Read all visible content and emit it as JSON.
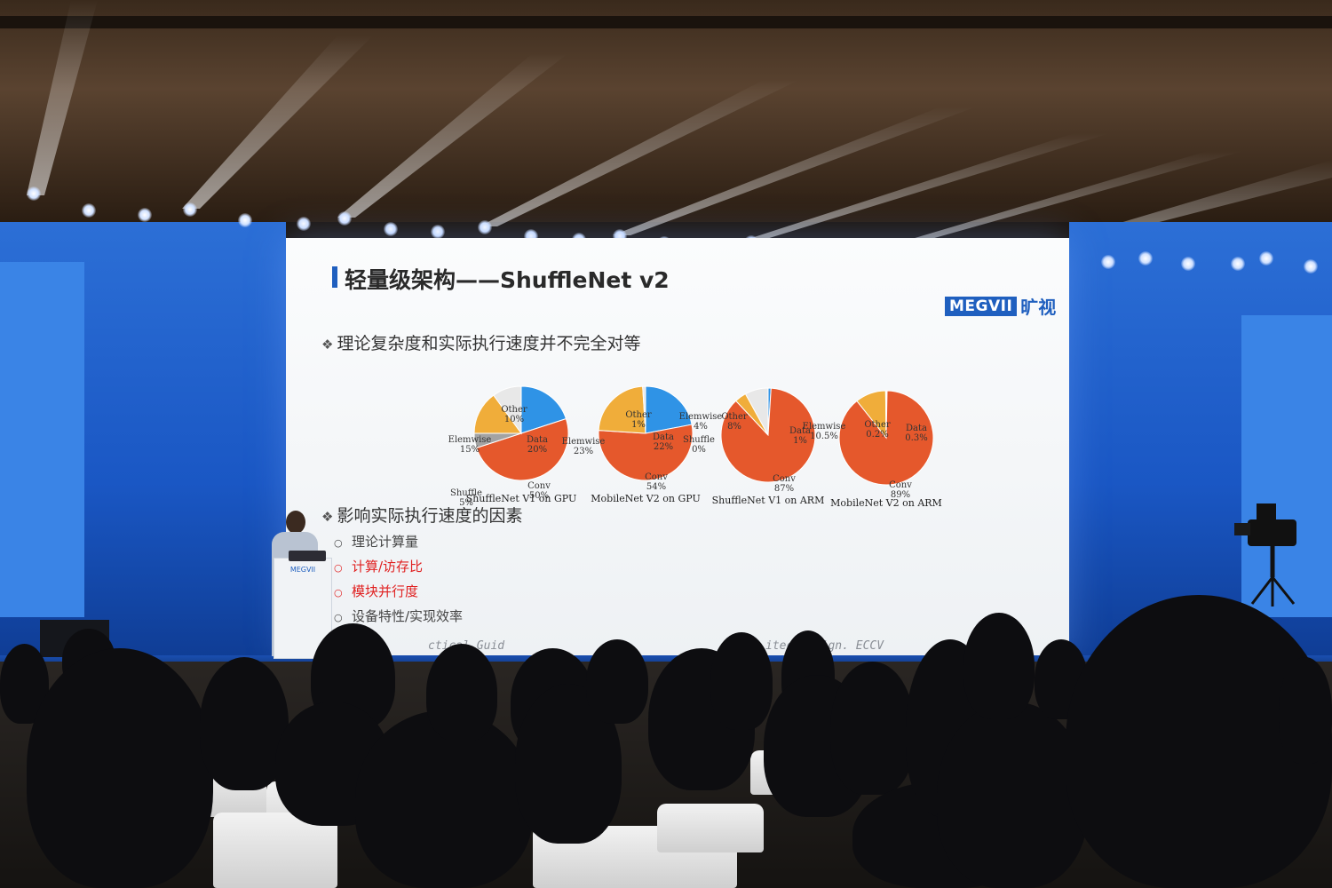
{
  "slide": {
    "title": "轻量级架构——ShuffleNet v2",
    "logo": {
      "brand": "MEGVII",
      "cn": "旷视",
      "color": "#1f5fbf"
    },
    "bullet_1": "理论复杂度和实际执行速度并不完全对等",
    "bullet_2": "影响实际执行速度的因素",
    "factors": [
      {
        "text": "理论计算量",
        "color": "#444444"
      },
      {
        "text": "计算/访存比",
        "color": "#e02020"
      },
      {
        "text": "模块并行度",
        "color": "#e02020"
      },
      {
        "text": "设备特性/实现效率",
        "color": "#444444"
      }
    ],
    "reference_fragment": "ctical Guid",
    "reference_fragment_2": "itect   esign. ECCV"
  },
  "colors": {
    "conv": "#e5582c",
    "data": "#2f93e6",
    "elemwise": "#f0ad3a",
    "shuffle": "#a3a3a3",
    "other": "#e8e8e8"
  },
  "chart_data": [
    {
      "type": "pie",
      "title": "ShuffleNet V1 on GPU",
      "slices": [
        {
          "label": "Data",
          "value": 20
        },
        {
          "label": "Conv",
          "value": 50
        },
        {
          "label": "Shuffle",
          "value": 5
        },
        {
          "label": "Elemwise",
          "value": 15
        },
        {
          "label": "Other",
          "value": 10
        }
      ],
      "labels": [
        "Data\n20%",
        "Conv\n50%",
        "Shuffle\n5%",
        "Elemwise\n15%",
        "Other\n10%"
      ]
    },
    {
      "type": "pie",
      "title": "MobileNet V2 on GPU",
      "slices": [
        {
          "label": "Data",
          "value": 22
        },
        {
          "label": "Conv",
          "value": 54
        },
        {
          "label": "Elemwise",
          "value": 23
        },
        {
          "label": "Other",
          "value": 1
        }
      ],
      "labels": [
        "Data\n22%",
        "Conv\n54%",
        "Elemwise\n23%",
        "Other\n1%"
      ]
    },
    {
      "type": "pie",
      "title": "ShuffleNet V1 on ARM",
      "slices": [
        {
          "label": "Data",
          "value": 1
        },
        {
          "label": "Conv",
          "value": 87
        },
        {
          "label": "Shuffle",
          "value": 0
        },
        {
          "label": "Elemwise",
          "value": 4
        },
        {
          "label": "Other",
          "value": 8
        }
      ],
      "labels": [
        "Data\n1%",
        "Conv\n87%",
        "Shuffle\n0%",
        "Elemwise\n4%",
        "Other\n8%"
      ]
    },
    {
      "type": "pie",
      "title": "MobileNet V2 on ARM",
      "slices": [
        {
          "label": "Data",
          "value": 0.3
        },
        {
          "label": "Conv",
          "value": 89
        },
        {
          "label": "Elemwise",
          "value": 10.5
        },
        {
          "label": "Other",
          "value": 0.2
        }
      ],
      "labels": [
        "Data\n0.3%",
        "Conv\n89%",
        "Elemwise\n10.5%",
        "Other\n0.2%"
      ]
    }
  ],
  "podium": {
    "sign": "MEGVII"
  }
}
